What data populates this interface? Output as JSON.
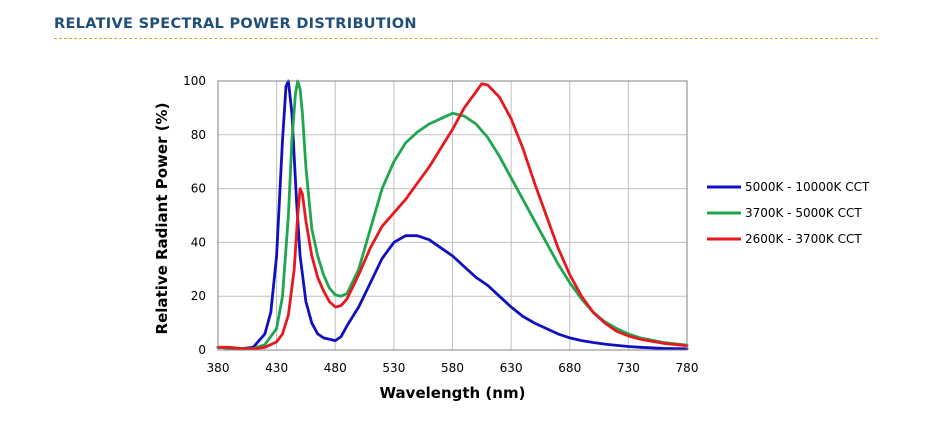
{
  "header": {
    "title": "RELATIVE SPECTRAL POWER DISTRIBUTION"
  },
  "chart_data": {
    "type": "line",
    "title": "",
    "xlabel": "Wavelength (nm)",
    "ylabel": "Relative Radiant Power (%)",
    "xlim": [
      380,
      780
    ],
    "ylim": [
      0,
      100
    ],
    "xticks": [
      380,
      430,
      480,
      530,
      580,
      630,
      680,
      730,
      780
    ],
    "yticks": [
      0,
      20,
      40,
      60,
      80,
      100
    ],
    "grid": true,
    "legend_position": "right",
    "series": [
      {
        "name": "5000K - 10000K CCT",
        "color": "#1010c0",
        "points": [
          [
            380,
            1
          ],
          [
            400,
            0.5
          ],
          [
            410,
            1
          ],
          [
            420,
            6
          ],
          [
            425,
            14
          ],
          [
            430,
            35
          ],
          [
            435,
            78
          ],
          [
            438,
            98
          ],
          [
            440,
            100
          ],
          [
            443,
            88
          ],
          [
            447,
            55
          ],
          [
            450,
            35
          ],
          [
            455,
            18
          ],
          [
            460,
            10
          ],
          [
            465,
            6
          ],
          [
            470,
            4.5
          ],
          [
            480,
            3.5
          ],
          [
            485,
            5
          ],
          [
            490,
            9
          ],
          [
            500,
            16
          ],
          [
            510,
            25
          ],
          [
            520,
            34
          ],
          [
            530,
            40
          ],
          [
            540,
            42.5
          ],
          [
            550,
            42.5
          ],
          [
            560,
            41
          ],
          [
            570,
            38
          ],
          [
            580,
            35
          ],
          [
            590,
            31
          ],
          [
            600,
            27
          ],
          [
            610,
            24
          ],
          [
            620,
            20
          ],
          [
            630,
            16
          ],
          [
            640,
            12.5
          ],
          [
            650,
            10
          ],
          [
            660,
            8
          ],
          [
            670,
            6
          ],
          [
            680,
            4.5
          ],
          [
            690,
            3.5
          ],
          [
            700,
            2.8
          ],
          [
            710,
            2.2
          ],
          [
            720,
            1.7
          ],
          [
            730,
            1.3
          ],
          [
            740,
            1
          ],
          [
            760,
            0.6
          ],
          [
            780,
            0.4
          ]
        ]
      },
      {
        "name": "3700K - 5000K CCT",
        "color": "#1fa64e",
        "points": [
          [
            380,
            1
          ],
          [
            400,
            0.5
          ],
          [
            410,
            0.5
          ],
          [
            420,
            2
          ],
          [
            430,
            8
          ],
          [
            435,
            20
          ],
          [
            440,
            50
          ],
          [
            443,
            78
          ],
          [
            446,
            95
          ],
          [
            448,
            100
          ],
          [
            450,
            97
          ],
          [
            452,
            88
          ],
          [
            455,
            68
          ],
          [
            460,
            45
          ],
          [
            465,
            35
          ],
          [
            470,
            28
          ],
          [
            475,
            23
          ],
          [
            480,
            20.5
          ],
          [
            485,
            20
          ],
          [
            490,
            21
          ],
          [
            500,
            30
          ],
          [
            510,
            45
          ],
          [
            520,
            60
          ],
          [
            530,
            70
          ],
          [
            540,
            77
          ],
          [
            550,
            81
          ],
          [
            560,
            84
          ],
          [
            570,
            86
          ],
          [
            580,
            88
          ],
          [
            590,
            87
          ],
          [
            600,
            84
          ],
          [
            610,
            79
          ],
          [
            620,
            72
          ],
          [
            630,
            64
          ],
          [
            640,
            56
          ],
          [
            650,
            48
          ],
          [
            660,
            40
          ],
          [
            670,
            32
          ],
          [
            680,
            25
          ],
          [
            690,
            19
          ],
          [
            700,
            14
          ],
          [
            710,
            10.5
          ],
          [
            720,
            8
          ],
          [
            730,
            6
          ],
          [
            740,
            4.5
          ],
          [
            760,
            2.8
          ],
          [
            780,
            1.8
          ]
        ]
      },
      {
        "name": "2600K - 3700K CCT",
        "color": "#e8191e",
        "points": [
          [
            380,
            1
          ],
          [
            390,
            1
          ],
          [
            400,
            0.5
          ],
          [
            410,
            0.5
          ],
          [
            420,
            1
          ],
          [
            430,
            3
          ],
          [
            435,
            6
          ],
          [
            440,
            13
          ],
          [
            445,
            30
          ],
          [
            448,
            50
          ],
          [
            450,
            60
          ],
          [
            452,
            58
          ],
          [
            455,
            48
          ],
          [
            460,
            35
          ],
          [
            465,
            27
          ],
          [
            470,
            22
          ],
          [
            475,
            18
          ],
          [
            480,
            16
          ],
          [
            485,
            16.5
          ],
          [
            490,
            19
          ],
          [
            500,
            28
          ],
          [
            510,
            38
          ],
          [
            520,
            46
          ],
          [
            530,
            51
          ],
          [
            540,
            56
          ],
          [
            550,
            62
          ],
          [
            560,
            68
          ],
          [
            570,
            75
          ],
          [
            580,
            82
          ],
          [
            590,
            90
          ],
          [
            600,
            96
          ],
          [
            605,
            99
          ],
          [
            610,
            98.5
          ],
          [
            620,
            94
          ],
          [
            630,
            86
          ],
          [
            640,
            75
          ],
          [
            650,
            62
          ],
          [
            660,
            50
          ],
          [
            670,
            38
          ],
          [
            680,
            28
          ],
          [
            690,
            20
          ],
          [
            700,
            14
          ],
          [
            710,
            10
          ],
          [
            720,
            7
          ],
          [
            730,
            5.2
          ],
          [
            740,
            4
          ],
          [
            760,
            2.5
          ],
          [
            780,
            1.6
          ]
        ]
      }
    ]
  }
}
